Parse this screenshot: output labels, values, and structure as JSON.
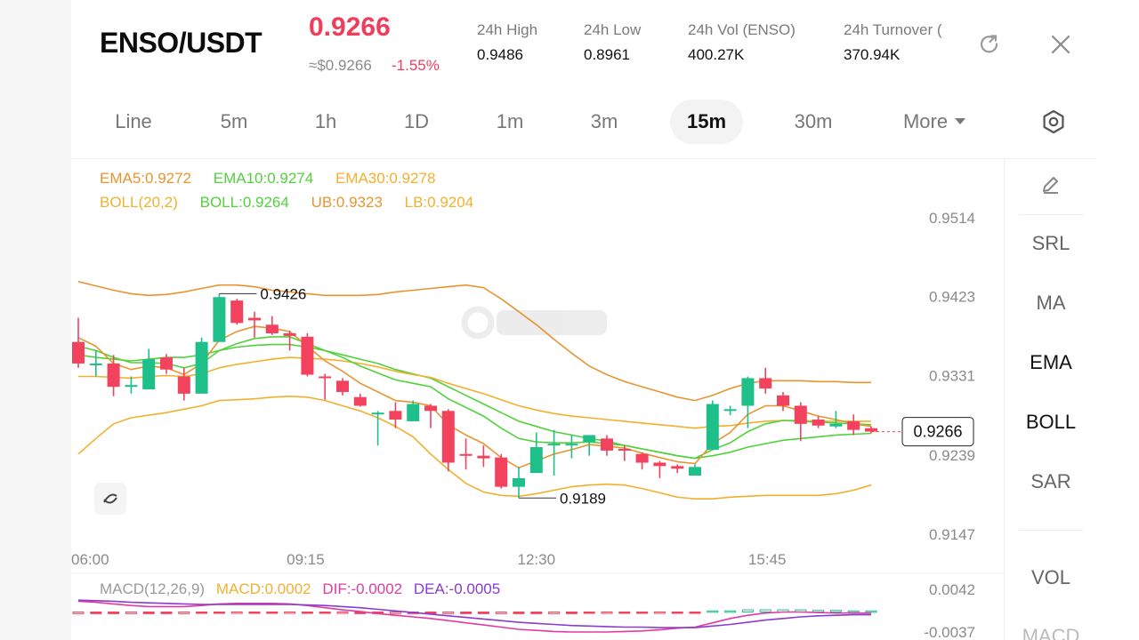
{
  "header": {
    "pair": "ENSO/USDT",
    "price": "0.9266",
    "usd_price": "≈$0.9266",
    "change": "-1.55%",
    "stats": [
      {
        "label": "24h   High",
        "value": "0.9486"
      },
      {
        "label": "24h   Low",
        "value": "0.8961"
      },
      {
        "label": "24h   Vol (ENSO)",
        "value": "400.27K"
      },
      {
        "label": "24h   Turnover (",
        "value": "370.94K"
      }
    ],
    "refresh_icon": "refresh-icon",
    "close_icon": "close-icon"
  },
  "tabs": {
    "items": [
      "Line",
      "5m",
      "1h",
      "1D",
      "1m",
      "3m",
      "15m",
      "30m",
      "More"
    ],
    "active": "15m",
    "settings_icon": "settings-icon"
  },
  "indicators": {
    "ema5": "EMA5:0.9272",
    "ema10": "EMA10:0.9274",
    "ema30": "EMA30:0.9278",
    "boll": "BOLL(20,2)",
    "boll_mid": "BOLL:0.9264",
    "ub": "UB:0.9323",
    "lb": "LB:0.9204"
  },
  "macd_legend": {
    "name": "MACD(12,26,9)",
    "macd": "MACD:0.0002",
    "dif": "DIF:-0.0002",
    "dea": "DEA:-0.0005"
  },
  "side_panel": {
    "items": [
      "SRL",
      "MA",
      "EMA",
      "BOLL",
      "SAR",
      "VOL",
      "MACD"
    ],
    "active": [
      "EMA",
      "BOLL"
    ],
    "edit_icon": "pencil-icon"
  },
  "colors": {
    "up": "#1fbf8a",
    "down": "#f2425e",
    "ema5": "#e89530",
    "ema10": "#52d13c",
    "ema30": "#f2b02f",
    "boll_mid": "#52d13c",
    "ub": "#e89530",
    "lb": "#f2b02f",
    "dif": "#e23aa2",
    "dea": "#8a3bd0",
    "macd": "#f2b02f"
  },
  "chart_data": {
    "type": "candlestick",
    "y_ticks": [
      "0.9514",
      "0.9423",
      "0.9331",
      "0.9239",
      "0.9147"
    ],
    "x_ticks": [
      "06:00",
      "09:15",
      "12:30",
      "15:45"
    ],
    "ylim": [
      0.9147,
      0.9514
    ],
    "current_price_label": "0.9266",
    "high_marker": "0.9426",
    "low_marker": "0.9189",
    "candles": [
      {
        "o": 0.937,
        "h": 0.9398,
        "l": 0.934,
        "c": 0.9345
      },
      {
        "o": 0.9345,
        "h": 0.936,
        "l": 0.933,
        "c": 0.9345
      },
      {
        "o": 0.9345,
        "h": 0.9355,
        "l": 0.9307,
        "c": 0.9318
      },
      {
        "o": 0.9318,
        "h": 0.933,
        "l": 0.931,
        "c": 0.932
      },
      {
        "o": 0.9315,
        "h": 0.9362,
        "l": 0.9315,
        "c": 0.935
      },
      {
        "o": 0.9352,
        "h": 0.9356,
        "l": 0.9333,
        "c": 0.9338
      },
      {
        "o": 0.933,
        "h": 0.934,
        "l": 0.9302,
        "c": 0.931
      },
      {
        "o": 0.931,
        "h": 0.9375,
        "l": 0.931,
        "c": 0.937
      },
      {
        "o": 0.937,
        "h": 0.9426,
        "l": 0.937,
        "c": 0.9422
      },
      {
        "o": 0.9418,
        "h": 0.942,
        "l": 0.939,
        "c": 0.9392
      },
      {
        "o": 0.9398,
        "h": 0.9405,
        "l": 0.9375,
        "c": 0.9395
      },
      {
        "o": 0.939,
        "h": 0.94,
        "l": 0.9378,
        "c": 0.938
      },
      {
        "o": 0.938,
        "h": 0.9383,
        "l": 0.936,
        "c": 0.9377
      },
      {
        "o": 0.9376,
        "h": 0.938,
        "l": 0.933,
        "c": 0.9332
      },
      {
        "o": 0.933,
        "h": 0.9333,
        "l": 0.9303,
        "c": 0.9328
      },
      {
        "o": 0.9325,
        "h": 0.9328,
        "l": 0.9308,
        "c": 0.9312
      },
      {
        "o": 0.9306,
        "h": 0.931,
        "l": 0.9295,
        "c": 0.9296
      },
      {
        "o": 0.9286,
        "h": 0.929,
        "l": 0.925,
        "c": 0.9288
      },
      {
        "o": 0.929,
        "h": 0.93,
        "l": 0.927,
        "c": 0.928
      },
      {
        "o": 0.9278,
        "h": 0.9302,
        "l": 0.9278,
        "c": 0.9298
      },
      {
        "o": 0.9296,
        "h": 0.9298,
        "l": 0.927,
        "c": 0.929
      },
      {
        "o": 0.929,
        "h": 0.9292,
        "l": 0.922,
        "c": 0.923
      },
      {
        "o": 0.924,
        "h": 0.9258,
        "l": 0.9222,
        "c": 0.9238
      },
      {
        "o": 0.9238,
        "h": 0.925,
        "l": 0.9225,
        "c": 0.9235
      },
      {
        "o": 0.9236,
        "h": 0.924,
        "l": 0.92,
        "c": 0.9202
      },
      {
        "o": 0.9202,
        "h": 0.9225,
        "l": 0.9189,
        "c": 0.9212
      },
      {
        "o": 0.9218,
        "h": 0.9265,
        "l": 0.9218,
        "c": 0.9248
      },
      {
        "o": 0.925,
        "h": 0.9268,
        "l": 0.9215,
        "c": 0.9252
      },
      {
        "o": 0.9252,
        "h": 0.9262,
        "l": 0.9235,
        "c": 0.9252
      },
      {
        "o": 0.9254,
        "h": 0.9262,
        "l": 0.9238,
        "c": 0.9262
      },
      {
        "o": 0.9258,
        "h": 0.9262,
        "l": 0.9238,
        "c": 0.9244
      },
      {
        "o": 0.9246,
        "h": 0.925,
        "l": 0.9232,
        "c": 0.9245
      },
      {
        "o": 0.924,
        "h": 0.9242,
        "l": 0.9222,
        "c": 0.923
      },
      {
        "o": 0.923,
        "h": 0.9232,
        "l": 0.9212,
        "c": 0.9226
      },
      {
        "o": 0.9226,
        "h": 0.9228,
        "l": 0.9218,
        "c": 0.9223
      },
      {
        "o": 0.9215,
        "h": 0.9228,
        "l": 0.9215,
        "c": 0.9225
      },
      {
        "o": 0.9245,
        "h": 0.9302,
        "l": 0.9245,
        "c": 0.9298
      },
      {
        "o": 0.929,
        "h": 0.9296,
        "l": 0.9285,
        "c": 0.9292
      },
      {
        "o": 0.9296,
        "h": 0.933,
        "l": 0.927,
        "c": 0.9328
      },
      {
        "o": 0.9328,
        "h": 0.934,
        "l": 0.931,
        "c": 0.9316
      },
      {
        "o": 0.9308,
        "h": 0.9312,
        "l": 0.929,
        "c": 0.9296
      },
      {
        "o": 0.9296,
        "h": 0.93,
        "l": 0.9255,
        "c": 0.9275
      },
      {
        "o": 0.928,
        "h": 0.9284,
        "l": 0.927,
        "c": 0.9273
      },
      {
        "o": 0.9272,
        "h": 0.929,
        "l": 0.927,
        "c": 0.9275
      },
      {
        "o": 0.9278,
        "h": 0.9286,
        "l": 0.9262,
        "c": 0.9268
      },
      {
        "o": 0.927,
        "h": 0.9272,
        "l": 0.9264,
        "c": 0.9266
      }
    ],
    "ema5": [
      0.9375,
      0.9365,
      0.9345,
      0.9338,
      0.9342,
      0.934,
      0.9332,
      0.9345,
      0.9372,
      0.9382,
      0.9388,
      0.9386,
      0.9382,
      0.9365,
      0.9348,
      0.9336,
      0.9322,
      0.9312,
      0.9302,
      0.93,
      0.9296,
      0.9274,
      0.9262,
      0.9252,
      0.9236,
      0.9224,
      0.9232,
      0.924,
      0.9245,
      0.9251,
      0.9249,
      0.9247,
      0.9241,
      0.9236,
      0.9231,
      0.9229,
      0.9252,
      0.9265,
      0.9286,
      0.9296,
      0.9296,
      0.929,
      0.9284,
      0.928,
      0.9275,
      0.9272
    ],
    "ema10": [
      0.9365,
      0.936,
      0.9352,
      0.9346,
      0.9346,
      0.9345,
      0.934,
      0.9345,
      0.936,
      0.9368,
      0.9374,
      0.9376,
      0.9376,
      0.9368,
      0.936,
      0.9352,
      0.9342,
      0.9334,
      0.9326,
      0.9322,
      0.9318,
      0.9304,
      0.9294,
      0.9284,
      0.927,
      0.9258,
      0.9254,
      0.9253,
      0.9253,
      0.9254,
      0.9252,
      0.925,
      0.9246,
      0.9242,
      0.9238,
      0.9235,
      0.9245,
      0.9253,
      0.9266,
      0.9275,
      0.9279,
      0.9278,
      0.9277,
      0.9276,
      0.9275,
      0.9274
    ],
    "ema30": [
      0.933,
      0.933,
      0.9329,
      0.9328,
      0.933,
      0.9331,
      0.933,
      0.9333,
      0.934,
      0.9344,
      0.9347,
      0.935,
      0.9352,
      0.9351,
      0.935,
      0.9348,
      0.9345,
      0.9341,
      0.9336,
      0.9332,
      0.9329,
      0.9322,
      0.9316,
      0.931,
      0.9303,
      0.9296,
      0.9291,
      0.9287,
      0.9284,
      0.9282,
      0.928,
      0.9278,
      0.9276,
      0.9274,
      0.9272,
      0.927,
      0.9272,
      0.9273,
      0.9276,
      0.9278,
      0.9279,
      0.9279,
      0.9278,
      0.9278,
      0.9278,
      0.9278
    ],
    "boll_mid": [
      0.9355,
      0.9352,
      0.935,
      0.9348,
      0.935,
      0.9352,
      0.9352,
      0.9355,
      0.936,
      0.9364,
      0.9366,
      0.9367,
      0.9367,
      0.9364,
      0.936,
      0.9355,
      0.935,
      0.9345,
      0.9338,
      0.9333,
      0.9328,
      0.9318,
      0.9308,
      0.9298,
      0.9288,
      0.9278,
      0.9272,
      0.9266,
      0.9262,
      0.9258,
      0.9255,
      0.925,
      0.9246,
      0.9242,
      0.9238,
      0.9235,
      0.9238,
      0.9242,
      0.9248,
      0.9252,
      0.9256,
      0.9258,
      0.926,
      0.9262,
      0.9263,
      0.9264
    ],
    "ub": [
      0.944,
      0.9435,
      0.943,
      0.9426,
      0.9424,
      0.9425,
      0.9428,
      0.9432,
      0.9436,
      0.9436,
      0.9434,
      0.943,
      0.9428,
      0.9426,
      0.9424,
      0.9424,
      0.9424,
      0.9425,
      0.9428,
      0.943,
      0.9432,
      0.9434,
      0.9436,
      0.9433,
      0.942,
      0.9405,
      0.939,
      0.9373,
      0.9357,
      0.9342,
      0.9332,
      0.9324,
      0.9318,
      0.9312,
      0.9306,
      0.9302,
      0.9308,
      0.9316,
      0.9322,
      0.9325,
      0.9325,
      0.9325,
      0.9324,
      0.9324,
      0.9323,
      0.9323
    ],
    "lb": [
      0.924,
      0.9258,
      0.9275,
      0.9282,
      0.9285,
      0.9288,
      0.9292,
      0.9296,
      0.9302,
      0.9303,
      0.9304,
      0.9306,
      0.9307,
      0.9306,
      0.9302,
      0.9296,
      0.929,
      0.9282,
      0.9272,
      0.926,
      0.924,
      0.9222,
      0.9206,
      0.9196,
      0.9192,
      0.9191,
      0.9194,
      0.9198,
      0.9202,
      0.9204,
      0.9205,
      0.9204,
      0.92,
      0.9195,
      0.919,
      0.9188,
      0.9188,
      0.919,
      0.9191,
      0.9192,
      0.9192,
      0.9192,
      0.9192,
      0.9194,
      0.9198,
      0.9204
    ],
    "macd_hist": [
      -0.0003,
      -0.0003,
      -0.0003,
      -0.0003,
      -0.0003,
      -0.0003,
      -0.0003,
      -0.0002,
      -0.0002,
      -0.0001,
      -0.0001,
      -0.0001,
      -0.0001,
      -0.0001,
      -0.0002,
      -0.0002,
      -0.0003,
      -0.0003,
      -0.0003,
      -0.0003,
      -0.0003,
      -0.0003,
      -0.0003,
      -0.0003,
      -0.0003,
      -0.0003,
      -0.0003,
      -0.0003,
      -0.0003,
      -0.0002,
      -0.0002,
      -0.0002,
      -0.0002,
      -0.0001,
      -0.0001,
      -0.0001,
      0.0002,
      0.0002,
      0.0004,
      0.0004,
      0.0004,
      0.0004,
      0.0003,
      0.0003,
      0.0002,
      0.0002
    ],
    "dif": [
      0.002,
      0.0018,
      0.0015,
      0.0012,
      0.001,
      0.001,
      0.001,
      0.0012,
      0.0015,
      0.0016,
      0.0016,
      0.0016,
      0.0015,
      0.0012,
      0.0008,
      0.0004,
      0.0001,
      -0.0003,
      -0.0006,
      -0.0009,
      -0.0012,
      -0.0016,
      -0.002,
      -0.0024,
      -0.0028,
      -0.0032,
      -0.0034,
      -0.0036,
      -0.0037,
      -0.0037,
      -0.0037,
      -0.0036,
      -0.0035,
      -0.0033,
      -0.003,
      -0.0028,
      -0.002,
      -0.0012,
      -0.0006,
      -0.0002,
      0.0,
      0.0,
      -0.0001,
      -0.0002,
      -0.0002,
      -0.0002
    ],
    "dea": [
      0.0022,
      0.0021,
      0.002,
      0.0018,
      0.0017,
      0.0016,
      0.0015,
      0.0014,
      0.0014,
      0.0014,
      0.0014,
      0.0014,
      0.0014,
      0.0013,
      0.0012,
      0.001,
      0.0008,
      0.0005,
      0.0002,
      -0.0001,
      -0.0004,
      -0.0007,
      -0.001,
      -0.0013,
      -0.0016,
      -0.0019,
      -0.0021,
      -0.0023,
      -0.0025,
      -0.0026,
      -0.0027,
      -0.0028,
      -0.0028,
      -0.0029,
      -0.0029,
      -0.0029,
      -0.0026,
      -0.0023,
      -0.0019,
      -0.0015,
      -0.0012,
      -0.0009,
      -0.0007,
      -0.0006,
      -0.0005,
      -0.0005
    ],
    "macd_y_ticks": [
      "0.0042",
      "-0.0037"
    ],
    "macd_ylim": [
      -0.0037,
      0.0042
    ]
  }
}
